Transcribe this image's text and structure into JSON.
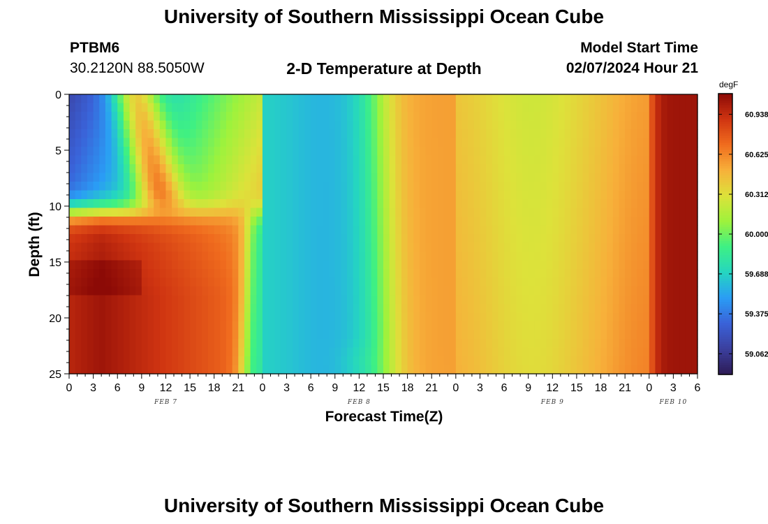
{
  "page": {
    "title_top": "University of Southern Mississippi Ocean Cube",
    "title_bottom": "University of Southern Mississippi Ocean Cube",
    "station_id": "PTBM6",
    "station_coords": "30.2120N  88.5050W",
    "plot_title": "2-D Temperature at Depth",
    "model_start_label": "Model Start Time",
    "model_start_value": "02/07/2024 Hour 21"
  },
  "chart_data": {
    "type": "heatmap",
    "title": "2-D Temperature at Depth",
    "xlabel": "Forecast Time(Z)",
    "ylabel": "Depth (ft)",
    "colorbar_unit": "degF",
    "colorbar_ticks": [
      59.062,
      59.375,
      59.688,
      60.0,
      60.312,
      60.625,
      60.938
    ],
    "colorbar_tick_labels": [
      "59.062",
      "59.375",
      "59.688",
      "60.000",
      "60.312",
      "60.625",
      "60.938"
    ],
    "value_range": [
      58.9,
      61.1
    ],
    "x_hours_range": [
      0,
      78
    ],
    "x_tick_hours": [
      0,
      3,
      6,
      9,
      12,
      15,
      18,
      21,
      24,
      27,
      30,
      33,
      36,
      39,
      42,
      45,
      48,
      51,
      54,
      57,
      60,
      63,
      66,
      69,
      72,
      75,
      78
    ],
    "x_tick_labels": [
      "0",
      "3",
      "6",
      "9",
      "12",
      "15",
      "18",
      "21",
      "0",
      "3",
      "6",
      "9",
      "12",
      "15",
      "18",
      "21",
      "0",
      "3",
      "6",
      "9",
      "12",
      "15",
      "18",
      "21",
      "0",
      "3",
      "6"
    ],
    "date_labels": [
      {
        "text": "FEB 7",
        "hour": 12
      },
      {
        "text": "FEB 8",
        "hour": 36
      },
      {
        "text": "FEB 9",
        "hour": 60
      },
      {
        "text": "FEB 10",
        "hour": 75
      }
    ],
    "y_range": [
      0,
      25
    ],
    "y_ticks": [
      0,
      5,
      10,
      15,
      20,
      25
    ],
    "y_tick_labels": [
      "0",
      "5",
      "10",
      "15",
      "20",
      "25"
    ],
    "grid": false,
    "colormap": [
      "#2d1b55",
      "#3b3f9e",
      "#3a62d8",
      "#2a9df5",
      "#25d6c0",
      "#3ef084",
      "#9ef23c",
      "#dde23a",
      "#f7b03a",
      "#f06c1e",
      "#cf3411",
      "#8c0a06"
    ]
  }
}
